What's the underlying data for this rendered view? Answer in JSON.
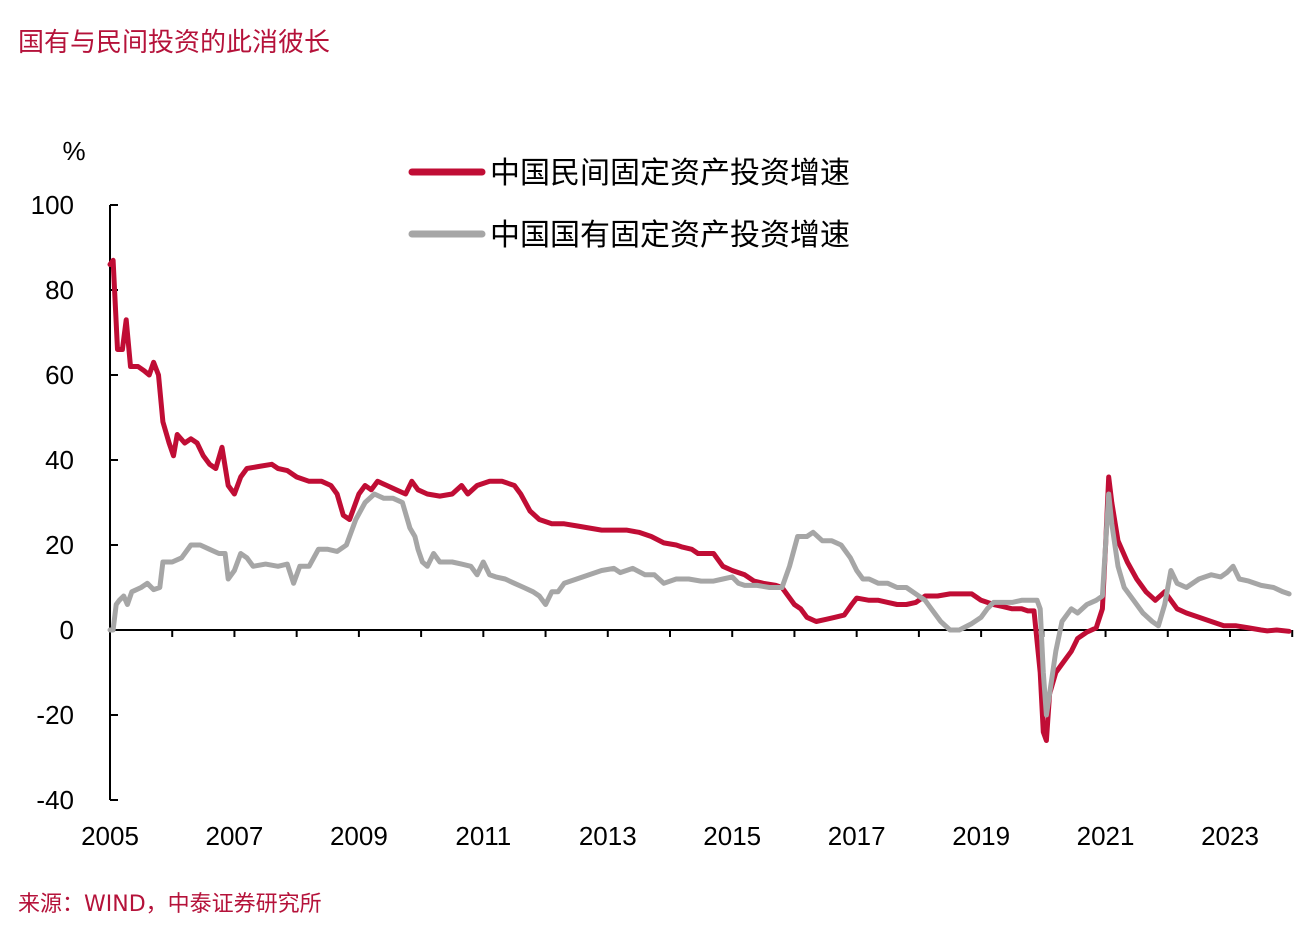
{
  "header": {
    "title": "国有与民间投资的此消彼长"
  },
  "footer": {
    "source": "来源：WIND，中泰证券研究所"
  },
  "colors": {
    "accent": "#b5123a",
    "private": "#c00d35",
    "state": "#a6a6a6",
    "axis": "#000000"
  },
  "chart_data": {
    "type": "line",
    "title": "",
    "ylabel": "%",
    "xlabel": "",
    "ylim": [
      -40,
      100
    ],
    "xlim": [
      2005.0,
      2023.95
    ],
    "yticks": [
      100,
      80,
      60,
      40,
      20,
      0,
      -20,
      -40
    ],
    "xticks": [
      "2005",
      "2007",
      "2009",
      "2011",
      "2013",
      "2015",
      "2017",
      "2019",
      "2021",
      "2023"
    ],
    "legend_position": "top-center",
    "grid": false,
    "series": [
      {
        "name": "中国民间固定资产投资增速",
        "color": "#c00d35",
        "points": [
          [
            2005.0,
            86
          ],
          [
            2005.05,
            87
          ],
          [
            2005.12,
            66
          ],
          [
            2005.2,
            66
          ],
          [
            2005.26,
            73
          ],
          [
            2005.33,
            62
          ],
          [
            2005.45,
            62
          ],
          [
            2005.55,
            61
          ],
          [
            2005.63,
            60
          ],
          [
            2005.7,
            63
          ],
          [
            2005.78,
            60
          ],
          [
            2005.85,
            49
          ],
          [
            2005.95,
            44
          ],
          [
            2006.02,
            41
          ],
          [
            2006.08,
            46
          ],
          [
            2006.2,
            44
          ],
          [
            2006.3,
            45
          ],
          [
            2006.4,
            44
          ],
          [
            2006.5,
            41
          ],
          [
            2006.6,
            39
          ],
          [
            2006.7,
            38
          ],
          [
            2006.8,
            43
          ],
          [
            2006.9,
            34
          ],
          [
            2007.0,
            32
          ],
          [
            2007.1,
            36
          ],
          [
            2007.2,
            38
          ],
          [
            2007.4,
            38.5
          ],
          [
            2007.6,
            39
          ],
          [
            2007.7,
            38
          ],
          [
            2007.85,
            37.5
          ],
          [
            2008.0,
            36
          ],
          [
            2008.2,
            35
          ],
          [
            2008.4,
            35
          ],
          [
            2008.55,
            34
          ],
          [
            2008.65,
            32
          ],
          [
            2008.75,
            27
          ],
          [
            2008.85,
            26
          ],
          [
            2009.0,
            32
          ],
          [
            2009.1,
            34
          ],
          [
            2009.2,
            33
          ],
          [
            2009.3,
            35
          ],
          [
            2009.45,
            34
          ],
          [
            2009.6,
            33
          ],
          [
            2009.75,
            32
          ],
          [
            2009.85,
            35
          ],
          [
            2009.95,
            33
          ],
          [
            2010.1,
            32
          ],
          [
            2010.3,
            31.5
          ],
          [
            2010.5,
            32
          ],
          [
            2010.65,
            34
          ],
          [
            2010.75,
            32
          ],
          [
            2010.9,
            34
          ],
          [
            2011.1,
            35
          ],
          [
            2011.3,
            35
          ],
          [
            2011.5,
            34
          ],
          [
            2011.6,
            32
          ],
          [
            2011.75,
            28
          ],
          [
            2011.9,
            26
          ],
          [
            2012.1,
            25
          ],
          [
            2012.3,
            25
          ],
          [
            2012.5,
            24.5
          ],
          [
            2012.7,
            24
          ],
          [
            2012.9,
            23.5
          ],
          [
            2013.1,
            23.5
          ],
          [
            2013.3,
            23.5
          ],
          [
            2013.5,
            23
          ],
          [
            2013.7,
            22
          ],
          [
            2013.9,
            20.5
          ],
          [
            2014.1,
            20
          ],
          [
            2014.2,
            19.5
          ],
          [
            2014.35,
            19
          ],
          [
            2014.45,
            18
          ],
          [
            2014.6,
            18
          ],
          [
            2014.7,
            18
          ],
          [
            2014.85,
            15
          ],
          [
            2015.0,
            14
          ],
          [
            2015.2,
            13
          ],
          [
            2015.35,
            11.5
          ],
          [
            2015.5,
            11
          ],
          [
            2015.7,
            10.5
          ],
          [
            2015.8,
            10
          ],
          [
            2015.9,
            8
          ],
          [
            2016.0,
            6
          ],
          [
            2016.1,
            5
          ],
          [
            2016.2,
            3
          ],
          [
            2016.35,
            2
          ],
          [
            2016.5,
            2.5
          ],
          [
            2016.65,
            3
          ],
          [
            2016.8,
            3.5
          ],
          [
            2016.92,
            6
          ],
          [
            2017.0,
            7.5
          ],
          [
            2017.2,
            7
          ],
          [
            2017.35,
            7
          ],
          [
            2017.5,
            6.5
          ],
          [
            2017.65,
            6
          ],
          [
            2017.8,
            6
          ],
          [
            2017.95,
            6.5
          ],
          [
            2018.1,
            8
          ],
          [
            2018.3,
            8
          ],
          [
            2018.5,
            8.5
          ],
          [
            2018.7,
            8.5
          ],
          [
            2018.85,
            8.5
          ],
          [
            2019.0,
            7
          ],
          [
            2019.2,
            6
          ],
          [
            2019.35,
            5.5
          ],
          [
            2019.5,
            5
          ],
          [
            2019.65,
            5
          ],
          [
            2019.75,
            4.5
          ],
          [
            2019.85,
            4.5
          ],
          [
            2019.95,
            -10
          ],
          [
            2020.0,
            -24
          ],
          [
            2020.05,
            -26
          ],
          [
            2020.1,
            -15
          ],
          [
            2020.2,
            -10
          ],
          [
            2020.3,
            -8
          ],
          [
            2020.45,
            -5
          ],
          [
            2020.55,
            -2
          ],
          [
            2020.7,
            -0.5
          ],
          [
            2020.85,
            0.5
          ],
          [
            2020.95,
            5
          ],
          [
            2021.0,
            20
          ],
          [
            2021.05,
            36
          ],
          [
            2021.1,
            30
          ],
          [
            2021.2,
            21
          ],
          [
            2021.35,
            16
          ],
          [
            2021.5,
            12
          ],
          [
            2021.65,
            9
          ],
          [
            2021.8,
            7
          ],
          [
            2021.95,
            9
          ],
          [
            2022.05,
            7
          ],
          [
            2022.15,
            5
          ],
          [
            2022.3,
            4
          ],
          [
            2022.5,
            3
          ],
          [
            2022.7,
            2
          ],
          [
            2022.9,
            1
          ],
          [
            2023.1,
            1
          ],
          [
            2023.3,
            0.5
          ],
          [
            2023.5,
            0
          ],
          [
            2023.6,
            -0.2
          ],
          [
            2023.75,
            0
          ],
          [
            2023.95,
            -0.3
          ]
        ]
      },
      {
        "name": "中国国有固定资产投资增速",
        "color": "#a6a6a6",
        "points": [
          [
            2005.0,
            0
          ],
          [
            2005.05,
            0
          ],
          [
            2005.1,
            6
          ],
          [
            2005.15,
            7
          ],
          [
            2005.22,
            8
          ],
          [
            2005.28,
            6
          ],
          [
            2005.35,
            9
          ],
          [
            2005.5,
            10
          ],
          [
            2005.6,
            11
          ],
          [
            2005.7,
            9.5
          ],
          [
            2005.8,
            10
          ],
          [
            2005.85,
            16
          ],
          [
            2006.0,
            16
          ],
          [
            2006.15,
            17
          ],
          [
            2006.3,
            20
          ],
          [
            2006.45,
            20
          ],
          [
            2006.6,
            19
          ],
          [
            2006.75,
            18
          ],
          [
            2006.85,
            18
          ],
          [
            2006.9,
            12
          ],
          [
            2007.0,
            14
          ],
          [
            2007.1,
            18
          ],
          [
            2007.2,
            17
          ],
          [
            2007.3,
            15
          ],
          [
            2007.5,
            15.5
          ],
          [
            2007.7,
            15
          ],
          [
            2007.85,
            15.5
          ],
          [
            2007.95,
            11
          ],
          [
            2008.05,
            15
          ],
          [
            2008.2,
            15
          ],
          [
            2008.35,
            19
          ],
          [
            2008.5,
            19
          ],
          [
            2008.65,
            18.5
          ],
          [
            2008.8,
            20
          ],
          [
            2008.95,
            26
          ],
          [
            2009.1,
            30
          ],
          [
            2009.25,
            32
          ],
          [
            2009.4,
            31
          ],
          [
            2009.55,
            31
          ],
          [
            2009.7,
            30
          ],
          [
            2009.82,
            24
          ],
          [
            2009.9,
            22
          ],
          [
            2009.95,
            19
          ],
          [
            2010.02,
            16
          ],
          [
            2010.1,
            15
          ],
          [
            2010.2,
            18
          ],
          [
            2010.3,
            16
          ],
          [
            2010.5,
            16
          ],
          [
            2010.65,
            15.5
          ],
          [
            2010.8,
            15
          ],
          [
            2010.9,
            13
          ],
          [
            2011.0,
            16
          ],
          [
            2011.1,
            13
          ],
          [
            2011.2,
            12.5
          ],
          [
            2011.35,
            12
          ],
          [
            2011.5,
            11
          ],
          [
            2011.65,
            10
          ],
          [
            2011.8,
            9
          ],
          [
            2011.9,
            8
          ],
          [
            2012.0,
            6
          ],
          [
            2012.1,
            9
          ],
          [
            2012.2,
            9
          ],
          [
            2012.3,
            11
          ],
          [
            2012.5,
            12
          ],
          [
            2012.7,
            13
          ],
          [
            2012.9,
            14
          ],
          [
            2013.1,
            14.5
          ],
          [
            2013.2,
            13.5
          ],
          [
            2013.4,
            14.5
          ],
          [
            2013.6,
            13
          ],
          [
            2013.75,
            13
          ],
          [
            2013.9,
            11
          ],
          [
            2014.1,
            12
          ],
          [
            2014.3,
            12
          ],
          [
            2014.5,
            11.5
          ],
          [
            2014.7,
            11.5
          ],
          [
            2014.85,
            12
          ],
          [
            2015.0,
            12.5
          ],
          [
            2015.1,
            11
          ],
          [
            2015.2,
            10.5
          ],
          [
            2015.4,
            10.5
          ],
          [
            2015.6,
            10
          ],
          [
            2015.8,
            10
          ],
          [
            2015.92,
            15
          ],
          [
            2016.05,
            22
          ],
          [
            2016.2,
            22
          ],
          [
            2016.3,
            23
          ],
          [
            2016.45,
            21
          ],
          [
            2016.6,
            21
          ],
          [
            2016.75,
            20
          ],
          [
            2016.9,
            17
          ],
          [
            2017.0,
            14
          ],
          [
            2017.1,
            12
          ],
          [
            2017.2,
            12
          ],
          [
            2017.35,
            11
          ],
          [
            2017.5,
            11
          ],
          [
            2017.65,
            10
          ],
          [
            2017.8,
            10
          ],
          [
            2017.95,
            8.5
          ],
          [
            2018.1,
            7
          ],
          [
            2018.2,
            5
          ],
          [
            2018.35,
            2
          ],
          [
            2018.5,
            0
          ],
          [
            2018.65,
            0
          ],
          [
            2018.85,
            1.5
          ],
          [
            2019.0,
            3
          ],
          [
            2019.1,
            5
          ],
          [
            2019.2,
            6.5
          ],
          [
            2019.35,
            6.5
          ],
          [
            2019.5,
            6.5
          ],
          [
            2019.65,
            7
          ],
          [
            2019.8,
            7
          ],
          [
            2019.9,
            7
          ],
          [
            2019.95,
            5
          ],
          [
            2020.0,
            -10
          ],
          [
            2020.05,
            -20
          ],
          [
            2020.1,
            -15
          ],
          [
            2020.2,
            -5
          ],
          [
            2020.3,
            2
          ],
          [
            2020.45,
            5
          ],
          [
            2020.55,
            4
          ],
          [
            2020.7,
            6
          ],
          [
            2020.85,
            7
          ],
          [
            2020.95,
            8
          ],
          [
            2021.0,
            20
          ],
          [
            2021.05,
            32
          ],
          [
            2021.1,
            25
          ],
          [
            2021.2,
            15
          ],
          [
            2021.3,
            10
          ],
          [
            2021.45,
            7
          ],
          [
            2021.6,
            4
          ],
          [
            2021.75,
            2
          ],
          [
            2021.85,
            1
          ],
          [
            2021.95,
            6
          ],
          [
            2022.05,
            14
          ],
          [
            2022.15,
            11
          ],
          [
            2022.3,
            10
          ],
          [
            2022.5,
            12
          ],
          [
            2022.7,
            13
          ],
          [
            2022.85,
            12.5
          ],
          [
            2022.95,
            13.5
          ],
          [
            2023.05,
            15
          ],
          [
            2023.15,
            12
          ],
          [
            2023.3,
            11.5
          ],
          [
            2023.5,
            10.5
          ],
          [
            2023.7,
            10
          ],
          [
            2023.85,
            9
          ],
          [
            2023.95,
            8.5
          ]
        ]
      }
    ]
  }
}
